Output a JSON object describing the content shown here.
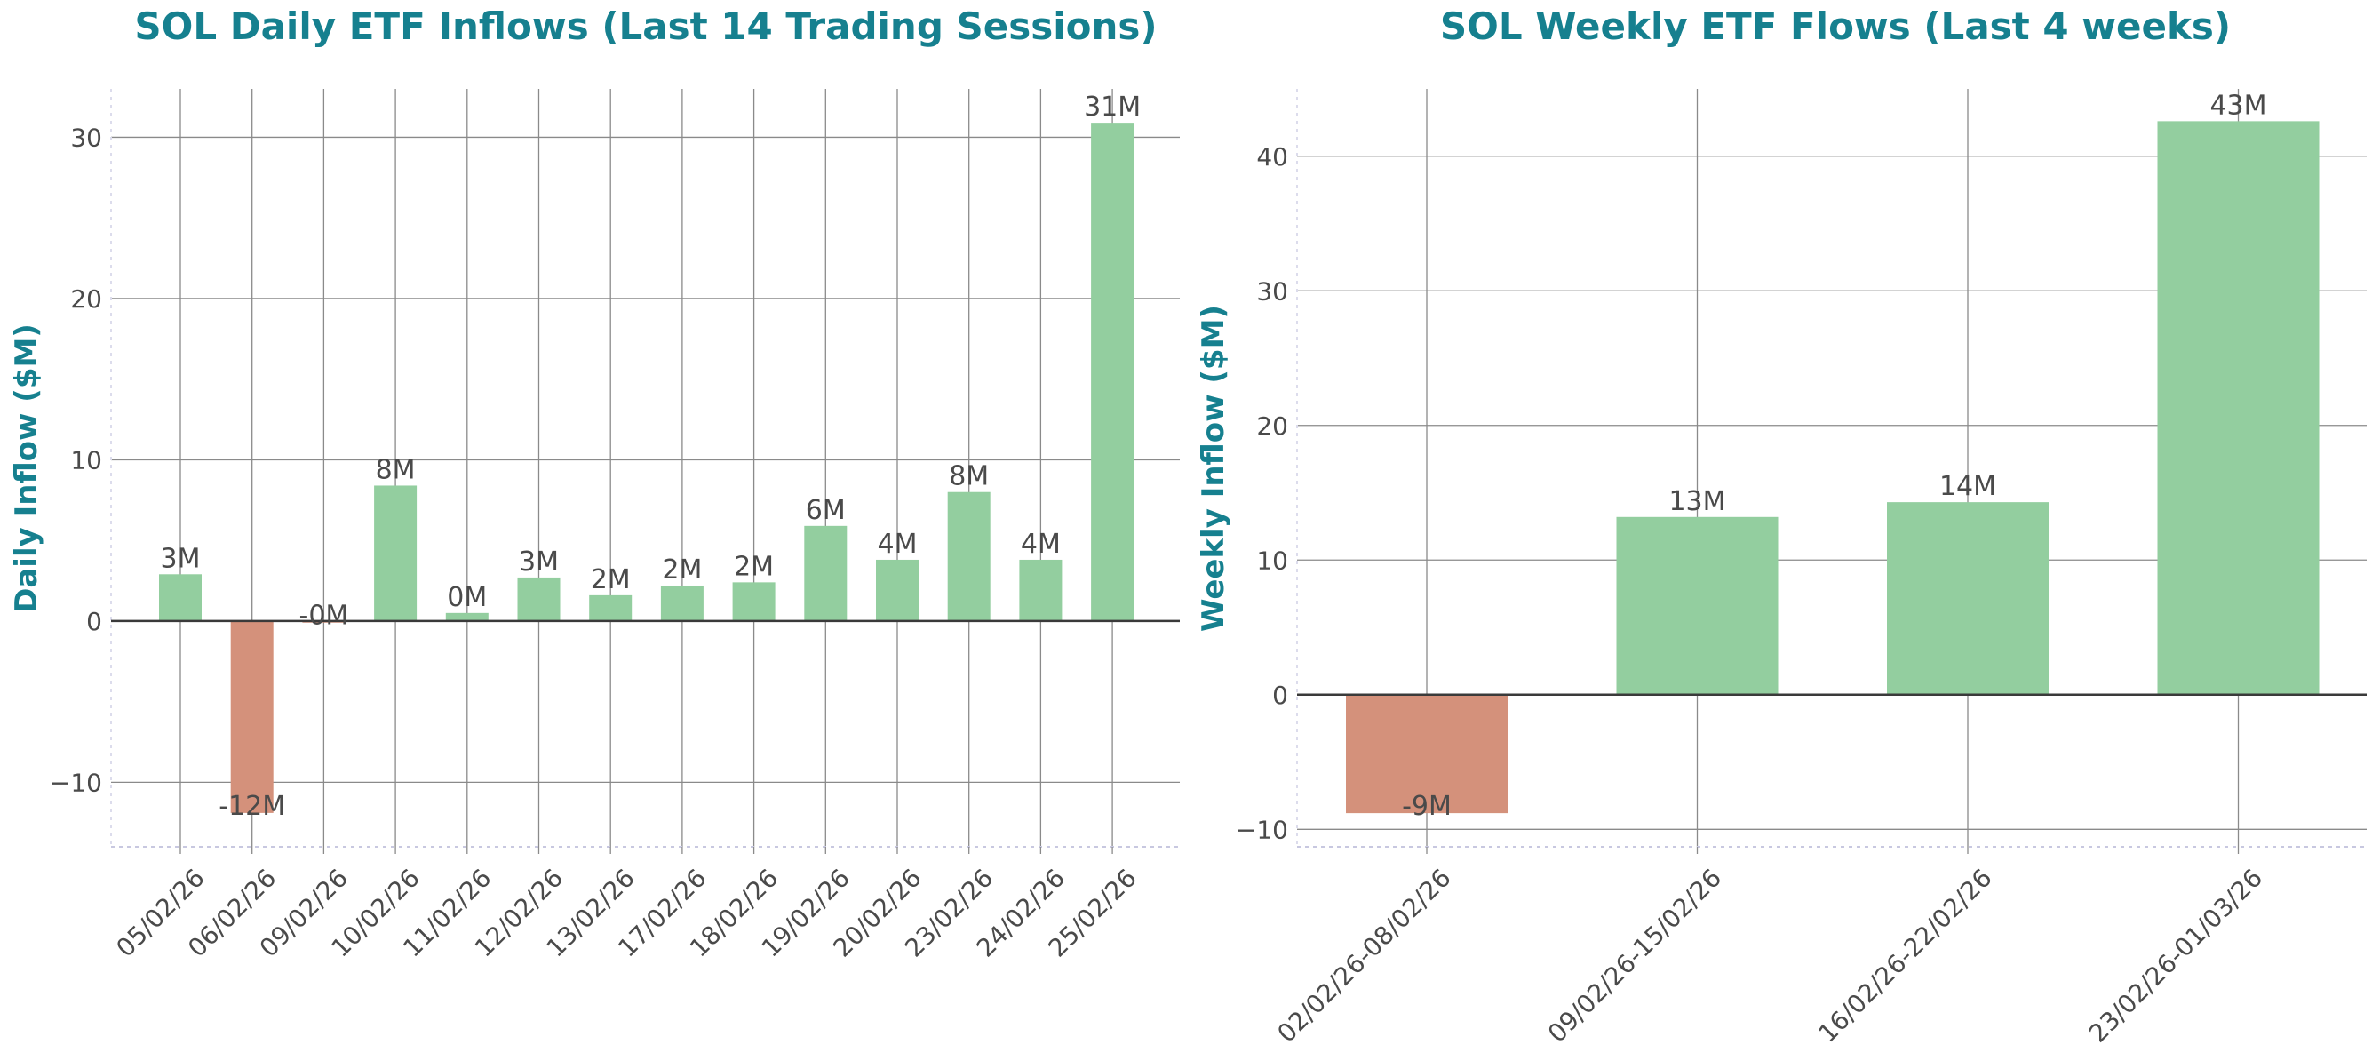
{
  "chart_data": [
    {
      "type": "bar",
      "title": "SOL Daily ETF Inflows (Last 14 Trading Sessions)",
      "ylabel": "Daily Inflow ($M)",
      "xlabel": "",
      "categories": [
        "05/02/26",
        "06/02/26",
        "09/02/26",
        "10/02/26",
        "11/02/26",
        "12/02/26",
        "13/02/26",
        "17/02/26",
        "18/02/26",
        "19/02/26",
        "20/02/26",
        "23/02/26",
        "24/02/26",
        "25/02/26"
      ],
      "values": [
        2.9,
        -11.9,
        -0.1,
        8.4,
        0.5,
        2.7,
        1.6,
        2.2,
        2.4,
        5.9,
        3.8,
        8.0,
        3.8,
        30.9
      ],
      "data_labels": [
        "3M",
        "-12M",
        "-0M",
        "8M",
        "0M",
        "3M",
        "2M",
        "2M",
        "2M",
        "6M",
        "4M",
        "8M",
        "4M",
        "31M"
      ],
      "yticks": [
        -10,
        0,
        10,
        20,
        30
      ],
      "ytick_labels": [
        "−10",
        "0",
        "10",
        "20",
        "30"
      ],
      "ylim": [
        -14,
        33
      ],
      "grid": true,
      "colors": {
        "positive": "#93ce9f",
        "negative": "#d4917b"
      }
    },
    {
      "type": "bar",
      "title": "SOL Weekly ETF Flows (Last 4 weeks)",
      "ylabel": "Weekly Inflow ($M)",
      "xlabel": "",
      "categories": [
        "02/02/26-08/02/26",
        "09/02/26-15/02/26",
        "16/02/26-22/02/26",
        "23/02/26-01/03/26"
      ],
      "values": [
        -8.8,
        13.2,
        14.3,
        42.6
      ],
      "data_labels": [
        "-9M",
        "13M",
        "14M",
        "43M"
      ],
      "yticks": [
        -10,
        0,
        10,
        20,
        30,
        40
      ],
      "ytick_labels": [
        "−10",
        "0",
        "10",
        "20",
        "30",
        "40"
      ],
      "ylim": [
        -11.3,
        45
      ],
      "grid": true,
      "colors": {
        "positive": "#93ce9f",
        "negative": "#d4917b"
      }
    }
  ]
}
